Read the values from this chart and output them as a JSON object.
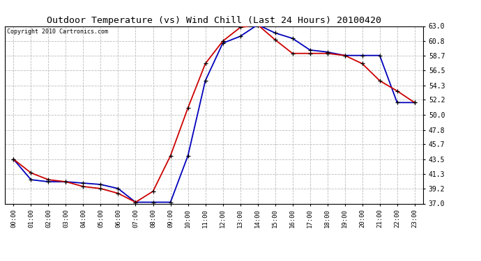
{
  "title": "Outdoor Temperature (vs) Wind Chill (Last 24 Hours) 20100420",
  "copyright": "Copyright 2010 Cartronics.com",
  "x_labels": [
    "00:00",
    "01:00",
    "02:00",
    "03:00",
    "04:00",
    "05:00",
    "06:00",
    "07:00",
    "08:00",
    "09:00",
    "10:00",
    "11:00",
    "12:00",
    "13:00",
    "14:00",
    "15:00",
    "16:00",
    "17:00",
    "18:00",
    "19:00",
    "20:00",
    "21:00",
    "22:00",
    "23:00"
  ],
  "temp_red": [
    43.5,
    41.5,
    40.5,
    40.2,
    39.5,
    39.2,
    38.5,
    37.2,
    38.8,
    44.0,
    51.0,
    57.5,
    60.8,
    62.8,
    63.2,
    61.0,
    59.0,
    59.0,
    59.0,
    58.7,
    57.5,
    55.0,
    53.5,
    51.8
  ],
  "wind_chill_blue": [
    43.5,
    40.5,
    40.2,
    40.2,
    40.0,
    39.8,
    39.2,
    37.2,
    37.2,
    37.2,
    44.0,
    55.0,
    60.5,
    61.5,
    63.2,
    62.0,
    61.2,
    59.5,
    59.2,
    58.7,
    58.7,
    58.7,
    51.8,
    51.8
  ],
  "ylim_min": 37.0,
  "ylim_max": 63.0,
  "yticks": [
    37.0,
    39.2,
    41.3,
    43.5,
    45.7,
    47.8,
    50.0,
    52.2,
    54.3,
    56.5,
    58.7,
    60.8,
    63.0
  ],
  "red_color": "#cc0000",
  "blue_color": "#0000bb",
  "bg_color": "#ffffff",
  "grid_color": "#bbbbbb",
  "title_fontsize": 9.5,
  "copyright_fontsize": 6.0,
  "tick_fontsize": 6.5,
  "ytick_fontsize": 7.0
}
